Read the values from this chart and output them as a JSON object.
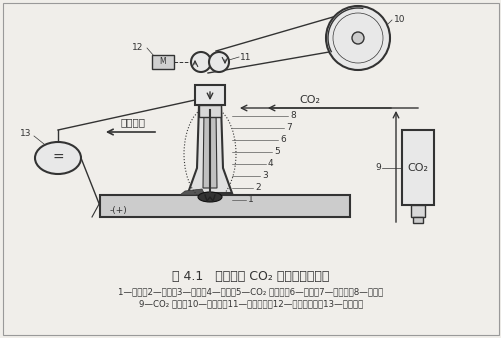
{
  "title": "图 4.1   实芯焊丝 CO₂ 气体保护焊示意",
  "caption_line1": "1—母材；2—熔池；3—焊缝；4—电弧；5—CO₂ 保护区；6—焊丝；7—导电嘴；8—喷嘴；",
  "caption_line2": "9—CO₂ 气瓶；10—焊丝盘；11—送丝滚轮；12—送丝电动机；13—直流电源",
  "bg_color": "#f0eeea",
  "line_color": "#333333",
  "label_co2_flow": "CO₂",
  "label_weld_dir": "焊接方向",
  "label_polarity": "-(+)",
  "label_co2_bottle": "CO₂",
  "figsize": [
    5.02,
    3.38
  ],
  "dpi": 100
}
